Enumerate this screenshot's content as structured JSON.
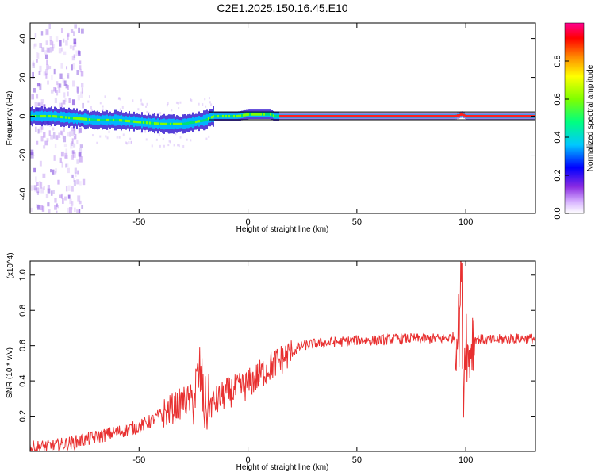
{
  "title": "C2E1.2025.150.16.45.E10",
  "chart_data": [
    {
      "type": "heatmap",
      "xlabel": "Height of straight line (km)",
      "ylabel": "Frequency (Hz)",
      "xlim": [
        -100,
        132
      ],
      "ylim": [
        -50,
        48
      ],
      "xticks": [
        -50,
        0,
        50,
        100
      ],
      "yticks": [
        -40,
        -20,
        0,
        20,
        40
      ],
      "colorbar": {
        "label": "Normalized spectral amplitude",
        "range": [
          0,
          1
        ],
        "ticks": [
          "0.0",
          "0.2",
          "0.4",
          "0.6",
          "0.8"
        ]
      },
      "ridge": {
        "x": [
          -100,
          -90,
          -80,
          -70,
          -60,
          -50,
          -45,
          -40,
          -35,
          -30,
          -25,
          -20,
          -16,
          -10,
          -5,
          0,
          5,
          10,
          12,
          20,
          50,
          95,
          98,
          100,
          102,
          110,
          132
        ],
        "freq": [
          0,
          0,
          -1,
          -2,
          -2,
          -3,
          -3.5,
          -4,
          -4,
          -4,
          -3,
          -2,
          0,
          0,
          0,
          1,
          1,
          1,
          0,
          0,
          0,
          0,
          1,
          0,
          0,
          0,
          0
        ]
      }
    },
    {
      "type": "line",
      "xlabel": "Height of straight line (km)",
      "ylabel": "SNR (10 * v/v)",
      "y_multiplier": "(x10^4)",
      "xlim": [
        -100,
        132
      ],
      "ylim": [
        0,
        1.08
      ],
      "xticks": [
        -50,
        0,
        50,
        100
      ],
      "yticks": [
        "0.2",
        "0.4",
        "0.6",
        "0.8",
        "1.0"
      ],
      "line_color": "#e83030",
      "series": [
        {
          "x": [
            -100,
            -90,
            -80,
            -70,
            -60,
            -50,
            -45,
            -40,
            -35,
            -30,
            -25,
            -22,
            -20,
            -15,
            -10,
            -5,
            0,
            5,
            10,
            15,
            20,
            25,
            30,
            40,
            50,
            60,
            70,
            80,
            90,
            95,
            97,
            98,
            99,
            100,
            101,
            103,
            105,
            110,
            120,
            132
          ],
          "y": [
            0.02,
            0.03,
            0.05,
            0.08,
            0.11,
            0.14,
            0.17,
            0.21,
            0.24,
            0.28,
            0.3,
            0.45,
            0.25,
            0.28,
            0.33,
            0.35,
            0.38,
            0.43,
            0.48,
            0.52,
            0.56,
            0.6,
            0.61,
            0.62,
            0.63,
            0.63,
            0.64,
            0.64,
            0.64,
            0.65,
            0.7,
            1.06,
            0.3,
            0.75,
            0.5,
            0.65,
            0.64,
            0.63,
            0.64,
            0.64
          ]
        }
      ]
    }
  ]
}
